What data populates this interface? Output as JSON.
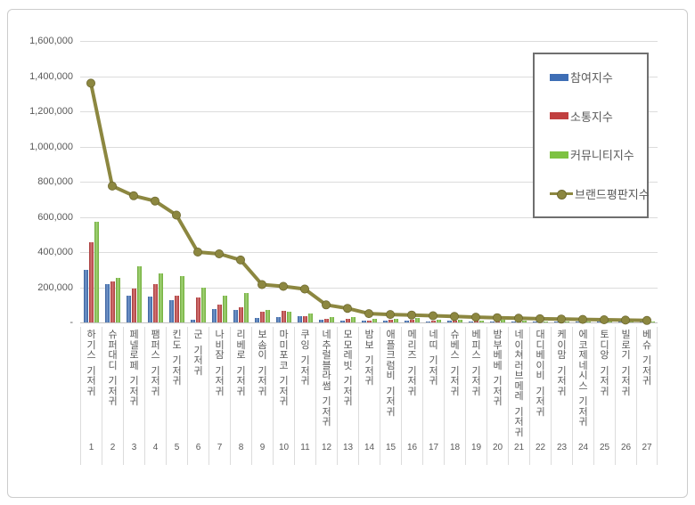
{
  "window": {
    "background": "#ffffff",
    "frame_border_color": "#cccccc"
  },
  "chart_data": {
    "type": "bar",
    "subtype": "grouped-bars-with-line-overlay",
    "title": "",
    "categories": [
      "하기스 기저귀",
      "슈퍼대디 기저귀",
      "페넬로페 기저귀",
      "팸퍼스 기저귀",
      "킨도 기저귀",
      "군 기저귀",
      "나비잠 기저귀",
      "리베로 기저귀",
      "보솜이 기저귀",
      "마미포코 기저귀",
      "쿠잉 기저귀",
      "네추럴블라썸 기저귀",
      "모모레빗 기저귀",
      "밤보 기저귀",
      "애플크럼비 기저귀",
      "메리즈 기저귀",
      "네띠 기저귀",
      "슈베스 기저귀",
      "베피스 기저귀",
      "밤부베베 기저귀",
      "네이쳐러브메레 기저귀",
      "대디베이비 기저귀",
      "케이맘 기저귀",
      "에코제네시스 기저귀",
      "토디앙 기저귀",
      "빌로기 기저귀",
      "베슈 기저귀"
    ],
    "rank_labels": [
      "1",
      "2",
      "3",
      "4",
      "5",
      "6",
      "7",
      "8",
      "9",
      "10",
      "11",
      "12",
      "13",
      "14",
      "15",
      "16",
      "17",
      "18",
      "19",
      "20",
      "21",
      "22",
      "23",
      "24",
      "25",
      "26",
      "27"
    ],
    "series": [
      {
        "key": "participation",
        "name": "참여지수",
        "type": "bar",
        "color": "#3E6EB5",
        "values": [
          300000,
          220000,
          150000,
          145000,
          125000,
          15000,
          75000,
          70000,
          25000,
          30000,
          35000,
          15000,
          10000,
          12000,
          8000,
          9000,
          5000,
          10000,
          7000,
          4000,
          3000,
          3000,
          2000,
          2000,
          2000,
          1000,
          1000
        ]
      },
      {
        "key": "communication",
        "name": "소통지수",
        "type": "bar",
        "color": "#C14040",
        "values": [
          455000,
          235000,
          190000,
          220000,
          150000,
          140000,
          100000,
          85000,
          60000,
          65000,
          38000,
          22000,
          18000,
          12000,
          14000,
          14000,
          11000,
          9000,
          9000,
          7000,
          5000,
          4000,
          4000,
          3000,
          3000,
          2000,
          2000
        ]
      },
      {
        "key": "community",
        "name": "커뮤니티지수",
        "type": "bar",
        "color": "#7EC242",
        "values": [
          570000,
          255000,
          320000,
          280000,
          265000,
          200000,
          150000,
          165000,
          70000,
          60000,
          50000,
          32000,
          32000,
          18000,
          22000,
          25000,
          14000,
          16000,
          11000,
          13000,
          9000,
          7000,
          6000,
          5000,
          4000,
          4000,
          3000
        ]
      },
      {
        "key": "brand-reputation",
        "name": "브랜드평판지수",
        "type": "line",
        "color": "#8C8740",
        "marker_edge_color": "#6e692f",
        "values": [
          1360000,
          775000,
          720000,
          690000,
          610000,
          400000,
          390000,
          355000,
          215000,
          205000,
          190000,
          100000,
          80000,
          50000,
          45000,
          42000,
          38000,
          34000,
          30000,
          27000,
          24000,
          21000,
          19000,
          17000,
          15000,
          13000,
          11000
        ]
      }
    ],
    "y_axis": {
      "min": 0,
      "max": 1600000,
      "step": 200000,
      "tick_labels_top_to_bottom": [
        "1,600,000",
        "1,400,000",
        "1,200,000",
        "1,000,000",
        "800,000",
        "600,000",
        "400,000",
        "200,000",
        "-"
      ]
    },
    "legend": {
      "position": "top-right"
    },
    "grid": true,
    "colors": {
      "gridline": "#dcdcdc",
      "axis_text": "#595959",
      "legend_border": "#6f6f6f"
    }
  }
}
